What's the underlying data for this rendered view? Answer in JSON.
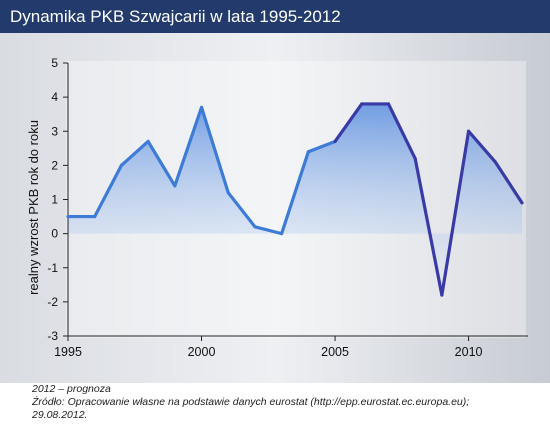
{
  "title": "Dynamika PKB Szwajcarii w lata 1995-2012",
  "footer": {
    "note": "2012 – prognoza",
    "source_line1": "Źródło: Opracowanie własne na podstawie danych eurostat (http://epp.eurostat.ec.europa.eu);",
    "source_line2": "29.08.2012."
  },
  "colors": {
    "title_bar": "#233a6d",
    "line_light": "#3d7bd6",
    "line_dark": "#3a3aa6",
    "area_top": "#5b8fe0"
  },
  "chart_data": {
    "type": "area",
    "title": "Dynamika PKB Szwajcarii w lata 1995-2012",
    "xlabel": "",
    "ylabel": "realny wzrost PKB rok do roku",
    "xlim": [
      1995,
      2012
    ],
    "ylim": [
      -3,
      5
    ],
    "x_ticks": [
      1995,
      2000,
      2005,
      2010
    ],
    "y_ticks": [
      5,
      4,
      3,
      2,
      1,
      0,
      -1,
      -2,
      -3
    ],
    "grid": false,
    "x": [
      1995,
      1996,
      1997,
      1998,
      1999,
      2000,
      2001,
      2002,
      2003,
      2004,
      2005,
      2006,
      2007,
      2008,
      2009,
      2010,
      2011,
      2012
    ],
    "series": [
      {
        "values": [
          0.5,
          0.5,
          2.0,
          2.7,
          1.4,
          3.7,
          1.2,
          0.2,
          0.0,
          2.4,
          2.7,
          3.8,
          3.8,
          2.2,
          -1.8,
          3.0,
          2.1,
          0.9
        ]
      }
    ]
  }
}
